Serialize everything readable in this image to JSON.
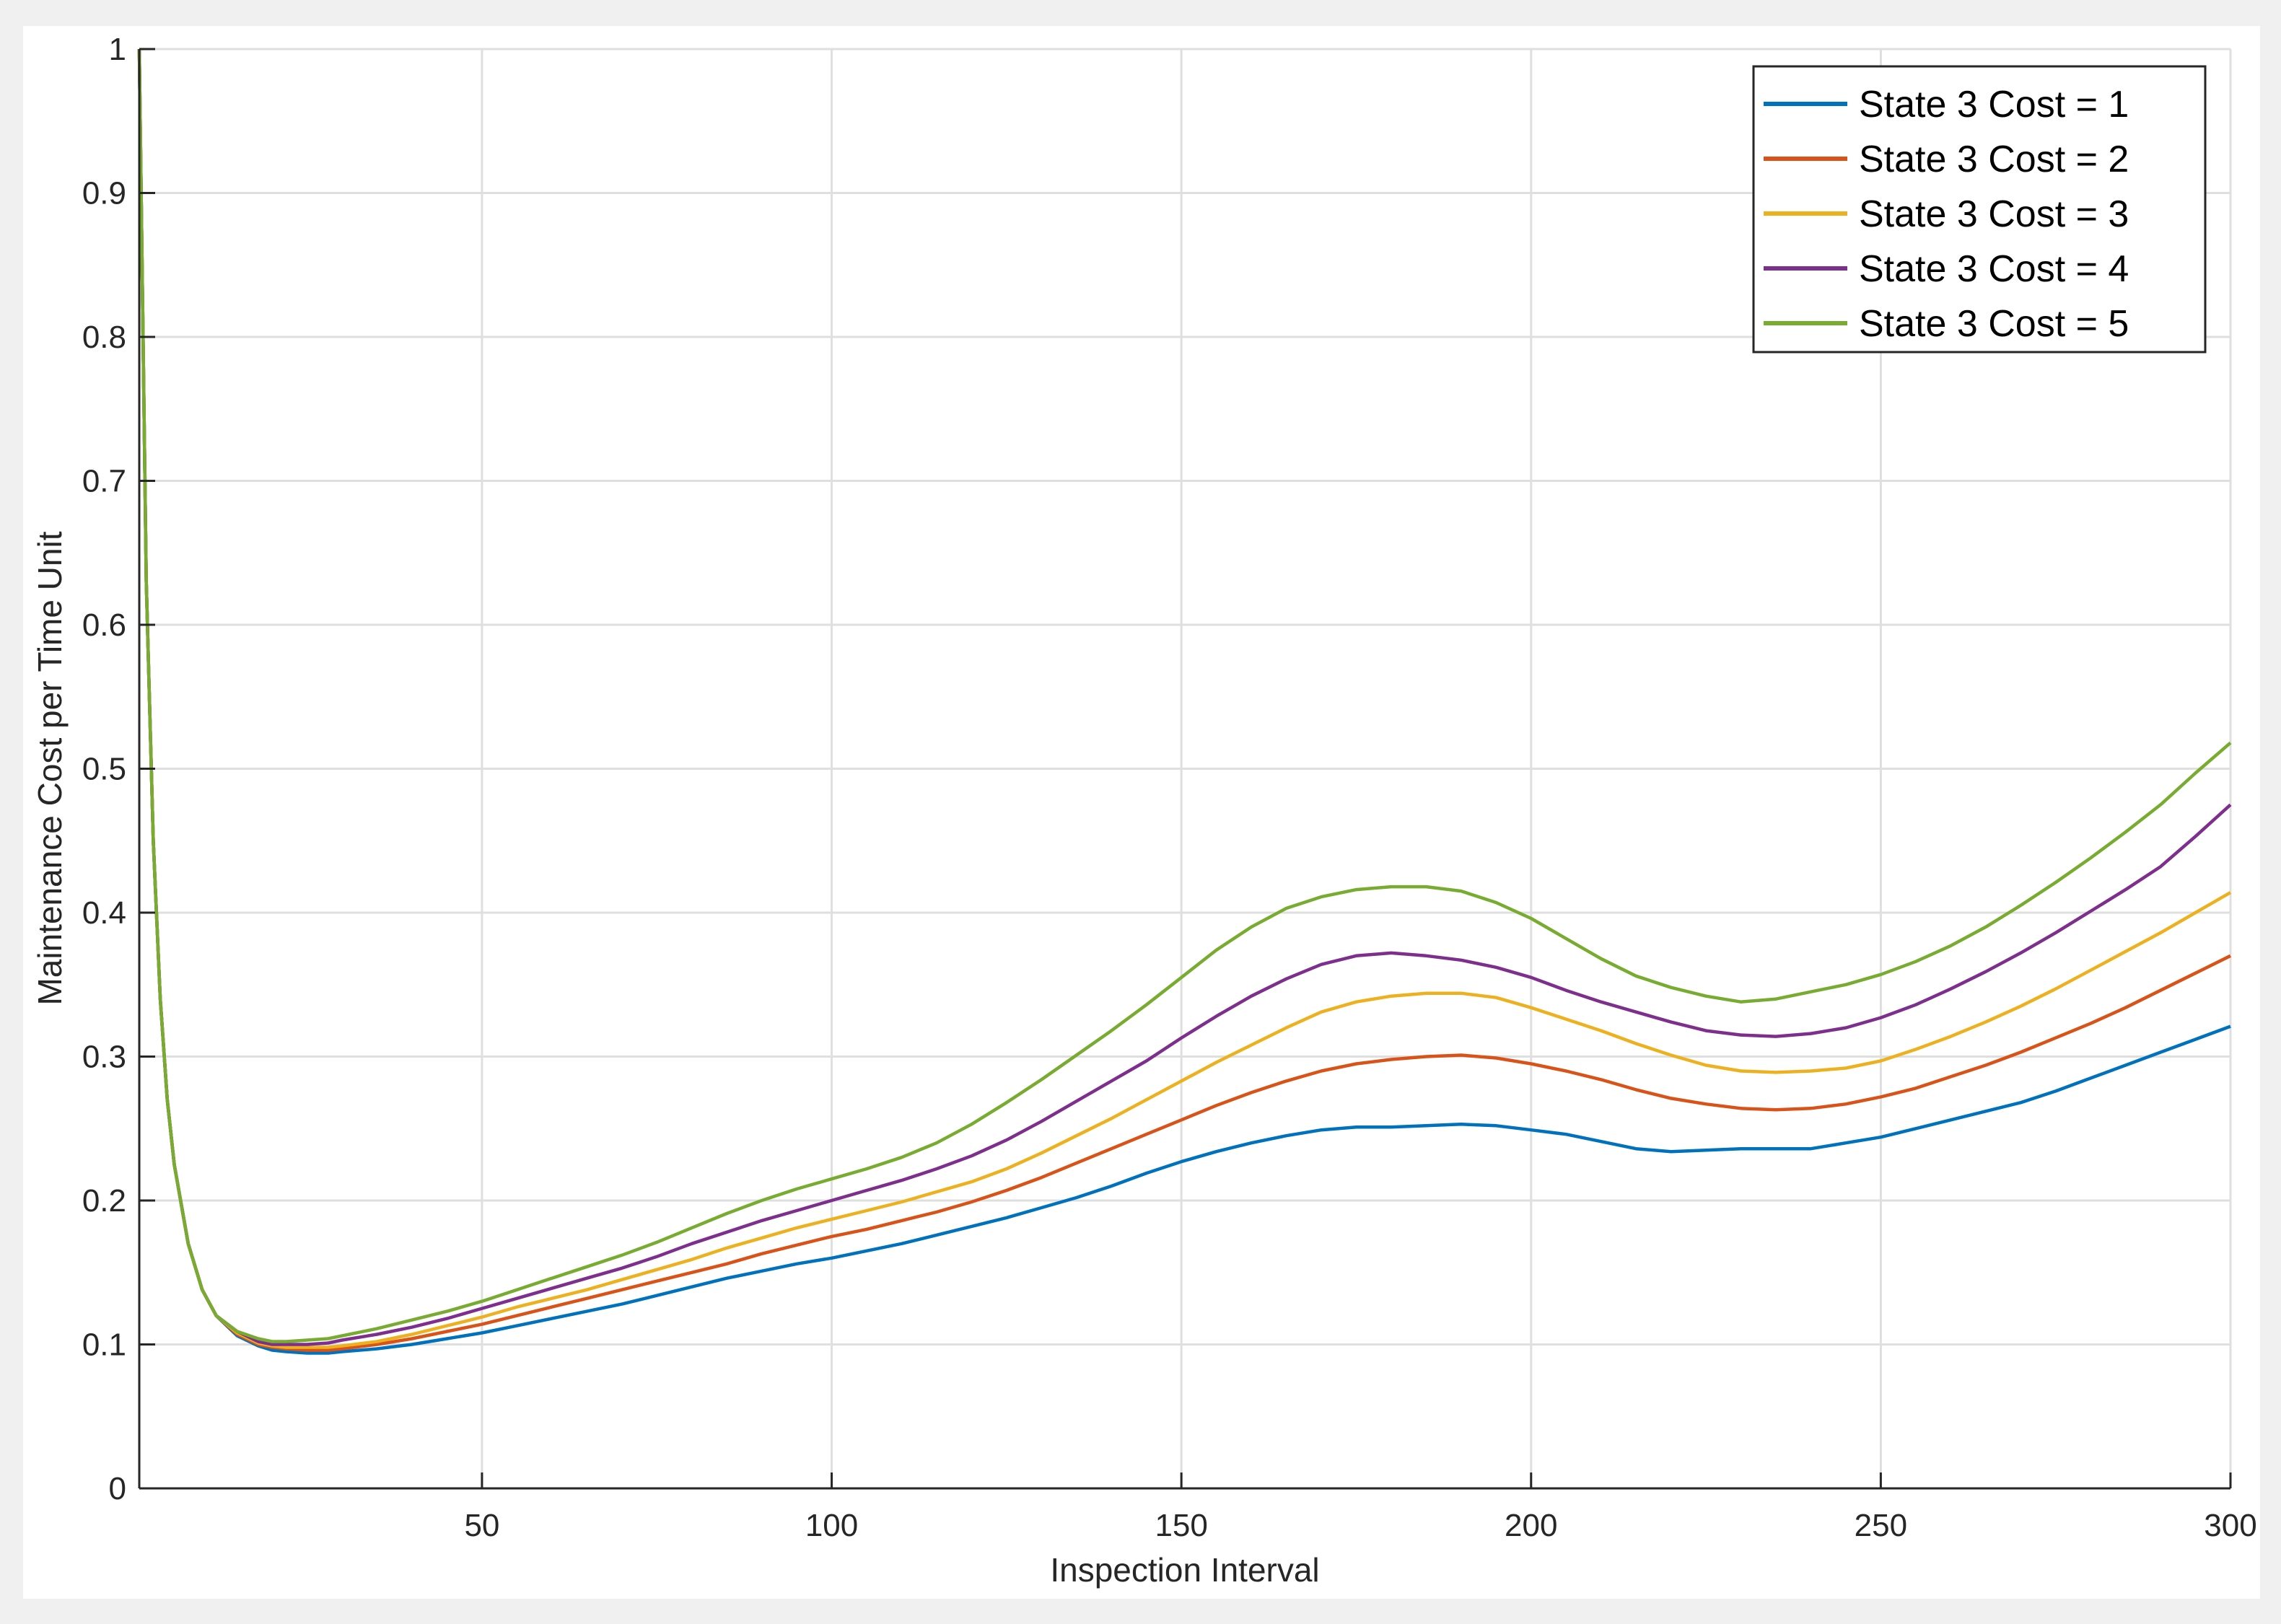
{
  "chart_data": {
    "type": "line",
    "title": "",
    "xlabel": "Inspection Interval",
    "ylabel": "Maintenance Cost per Time Unit",
    "xlim": [
      1,
      300
    ],
    "ylim": [
      0,
      1
    ],
    "xticks": [
      50,
      100,
      150,
      200,
      250,
      300
    ],
    "xtick_labels": [
      "50",
      "100",
      "150",
      "200",
      "250",
      "300"
    ],
    "yticks": [
      0,
      0.1,
      0.2,
      0.3,
      0.4,
      0.5,
      0.6,
      0.7,
      0.8,
      0.9,
      1
    ],
    "ytick_labels": [
      "0",
      "0.1",
      "0.2",
      "0.3",
      "0.4",
      "0.5",
      "0.6",
      "0.7",
      "0.8",
      "0.9",
      "1"
    ],
    "grid": true,
    "legend_position": "top-right",
    "x": [
      1,
      2,
      3,
      4,
      5,
      6,
      8,
      10,
      12,
      15,
      18,
      20,
      22,
      25,
      28,
      30,
      35,
      40,
      45,
      50,
      55,
      60,
      65,
      70,
      75,
      80,
      85,
      90,
      95,
      100,
      105,
      110,
      115,
      120,
      125,
      130,
      135,
      140,
      145,
      150,
      155,
      160,
      165,
      170,
      175,
      180,
      185,
      190,
      195,
      200,
      205,
      210,
      215,
      220,
      225,
      230,
      235,
      240,
      245,
      250,
      255,
      260,
      265,
      270,
      275,
      280,
      285,
      290,
      295,
      300
    ],
    "series": [
      {
        "name": "State 3 Cost = 1",
        "color": "#0072BD",
        "values": [
          1.0,
          0.63,
          0.45,
          0.34,
          0.27,
          0.225,
          0.17,
          0.138,
          0.12,
          0.106,
          0.099,
          0.096,
          0.095,
          0.094,
          0.094,
          0.095,
          0.097,
          0.1,
          0.104,
          0.108,
          0.113,
          0.118,
          0.123,
          0.128,
          0.134,
          0.14,
          0.146,
          0.151,
          0.156,
          0.16,
          0.165,
          0.17,
          0.176,
          0.182,
          0.188,
          0.195,
          0.202,
          0.21,
          0.219,
          0.227,
          0.234,
          0.24,
          0.245,
          0.249,
          0.251,
          0.251,
          0.252,
          0.253,
          0.252,
          0.249,
          0.246,
          0.241,
          0.236,
          0.234,
          0.235,
          0.236,
          0.236,
          0.236,
          0.24,
          0.244,
          0.25,
          0.256,
          0.262,
          0.268,
          0.276,
          0.285,
          0.294,
          0.303,
          0.312,
          0.321
        ]
      },
      {
        "name": "State 3 Cost = 2",
        "color": "#D95319",
        "values": [
          1.0,
          0.63,
          0.45,
          0.34,
          0.27,
          0.225,
          0.17,
          0.138,
          0.12,
          0.107,
          0.1,
          0.098,
          0.097,
          0.096,
          0.096,
          0.097,
          0.1,
          0.104,
          0.109,
          0.114,
          0.12,
          0.126,
          0.132,
          0.138,
          0.144,
          0.15,
          0.156,
          0.163,
          0.169,
          0.175,
          0.18,
          0.186,
          0.192,
          0.199,
          0.207,
          0.216,
          0.226,
          0.236,
          0.246,
          0.256,
          0.266,
          0.275,
          0.283,
          0.29,
          0.295,
          0.298,
          0.3,
          0.301,
          0.299,
          0.295,
          0.29,
          0.284,
          0.277,
          0.271,
          0.267,
          0.264,
          0.263,
          0.264,
          0.267,
          0.272,
          0.278,
          0.286,
          0.294,
          0.303,
          0.313,
          0.323,
          0.334,
          0.346,
          0.358,
          0.37
        ]
      },
      {
        "name": "State 3 Cost = 3",
        "color": "#EDB120",
        "values": [
          1.0,
          0.63,
          0.45,
          0.34,
          0.27,
          0.225,
          0.17,
          0.138,
          0.12,
          0.108,
          0.101,
          0.099,
          0.098,
          0.098,
          0.098,
          0.099,
          0.102,
          0.107,
          0.113,
          0.119,
          0.126,
          0.132,
          0.138,
          0.145,
          0.152,
          0.159,
          0.167,
          0.174,
          0.181,
          0.187,
          0.193,
          0.199,
          0.206,
          0.213,
          0.222,
          0.233,
          0.245,
          0.257,
          0.27,
          0.283,
          0.296,
          0.308,
          0.32,
          0.331,
          0.338,
          0.342,
          0.344,
          0.344,
          0.341,
          0.334,
          0.326,
          0.318,
          0.309,
          0.301,
          0.294,
          0.29,
          0.289,
          0.29,
          0.292,
          0.297,
          0.305,
          0.314,
          0.324,
          0.335,
          0.347,
          0.36,
          0.373,
          0.386,
          0.4,
          0.414
        ]
      },
      {
        "name": "State 3 Cost = 4",
        "color": "#7E2F8E",
        "values": [
          1.0,
          0.63,
          0.45,
          0.34,
          0.27,
          0.225,
          0.17,
          0.138,
          0.12,
          0.109,
          0.102,
          0.1,
          0.1,
          0.1,
          0.101,
          0.103,
          0.107,
          0.112,
          0.118,
          0.125,
          0.132,
          0.139,
          0.146,
          0.153,
          0.161,
          0.17,
          0.178,
          0.186,
          0.193,
          0.2,
          0.207,
          0.214,
          0.222,
          0.231,
          0.242,
          0.255,
          0.269,
          0.283,
          0.297,
          0.313,
          0.328,
          0.342,
          0.354,
          0.364,
          0.37,
          0.372,
          0.37,
          0.367,
          0.362,
          0.355,
          0.346,
          0.338,
          0.331,
          0.324,
          0.318,
          0.315,
          0.314,
          0.316,
          0.32,
          0.327,
          0.336,
          0.347,
          0.359,
          0.372,
          0.386,
          0.401,
          0.416,
          0.432,
          0.453,
          0.475
        ]
      },
      {
        "name": "State 3 Cost = 5",
        "color": "#77AC30",
        "values": [
          1.0,
          0.63,
          0.45,
          0.34,
          0.27,
          0.225,
          0.17,
          0.138,
          0.12,
          0.109,
          0.104,
          0.102,
          0.102,
          0.103,
          0.104,
          0.106,
          0.111,
          0.117,
          0.123,
          0.13,
          0.138,
          0.146,
          0.154,
          0.162,
          0.171,
          0.181,
          0.191,
          0.2,
          0.208,
          0.215,
          0.222,
          0.23,
          0.24,
          0.253,
          0.268,
          0.284,
          0.301,
          0.318,
          0.336,
          0.355,
          0.374,
          0.39,
          0.403,
          0.411,
          0.416,
          0.418,
          0.418,
          0.415,
          0.407,
          0.396,
          0.382,
          0.368,
          0.356,
          0.348,
          0.342,
          0.338,
          0.34,
          0.345,
          0.35,
          0.357,
          0.366,
          0.377,
          0.39,
          0.405,
          0.421,
          0.438,
          0.456,
          0.475,
          0.497,
          0.518
        ]
      }
    ]
  }
}
